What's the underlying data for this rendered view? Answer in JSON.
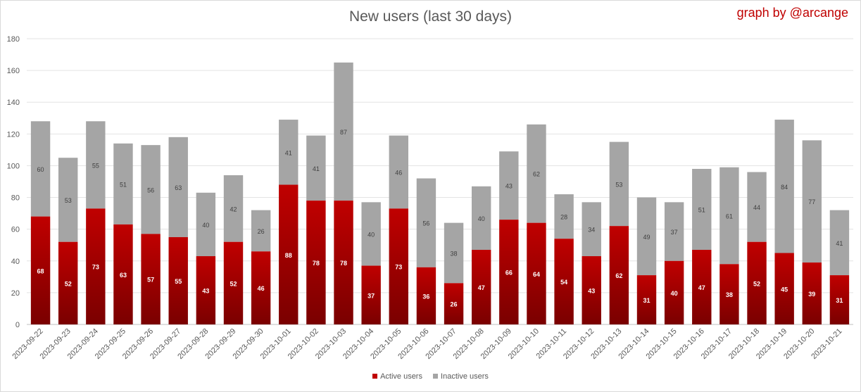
{
  "chart_data": {
    "type": "bar",
    "stacked": true,
    "title": "New users (last 30 days)",
    "credit": "graph by @arcange",
    "categories": [
      "2023-09-22",
      "2023-09-23",
      "2023-09-24",
      "2023-09-25",
      "2023-09-26",
      "2023-09-27",
      "2023-09-28",
      "2023-09-29",
      "2023-09-30",
      "2023-10-01",
      "2023-10-02",
      "2023-10-03",
      "2023-10-04",
      "2023-10-05",
      "2023-10-06",
      "2023-10-07",
      "2023-10-08",
      "2023-10-09",
      "2023-10-10",
      "2023-10-11",
      "2023-10-12",
      "2023-10-13",
      "2023-10-14",
      "2023-10-15",
      "2023-10-16",
      "2023-10-17",
      "2023-10-18",
      "2023-10-19",
      "2023-10-20",
      "2023-10-21"
    ],
    "series": [
      {
        "name": "Active users",
        "color": "#c00000",
        "values": [
          68,
          52,
          73,
          63,
          57,
          55,
          43,
          52,
          46,
          88,
          78,
          78,
          37,
          73,
          36,
          26,
          47,
          66,
          64,
          54,
          43,
          62,
          31,
          40,
          47,
          38,
          52,
          45,
          39,
          31
        ]
      },
      {
        "name": "Inactive users",
        "color": "#a5a5a5",
        "values": [
          60,
          53,
          55,
          51,
          56,
          63,
          40,
          42,
          26,
          41,
          41,
          87,
          40,
          46,
          56,
          38,
          40,
          43,
          62,
          28,
          34,
          53,
          49,
          37,
          51,
          61,
          44,
          84,
          77,
          41
        ]
      }
    ],
    "ylim": [
      0,
      180
    ],
    "yticks": [
      0,
      20,
      40,
      60,
      80,
      100,
      120,
      140,
      160,
      180
    ],
    "grid": true,
    "legend_position": "bottom",
    "xlabel": "",
    "ylabel": ""
  }
}
